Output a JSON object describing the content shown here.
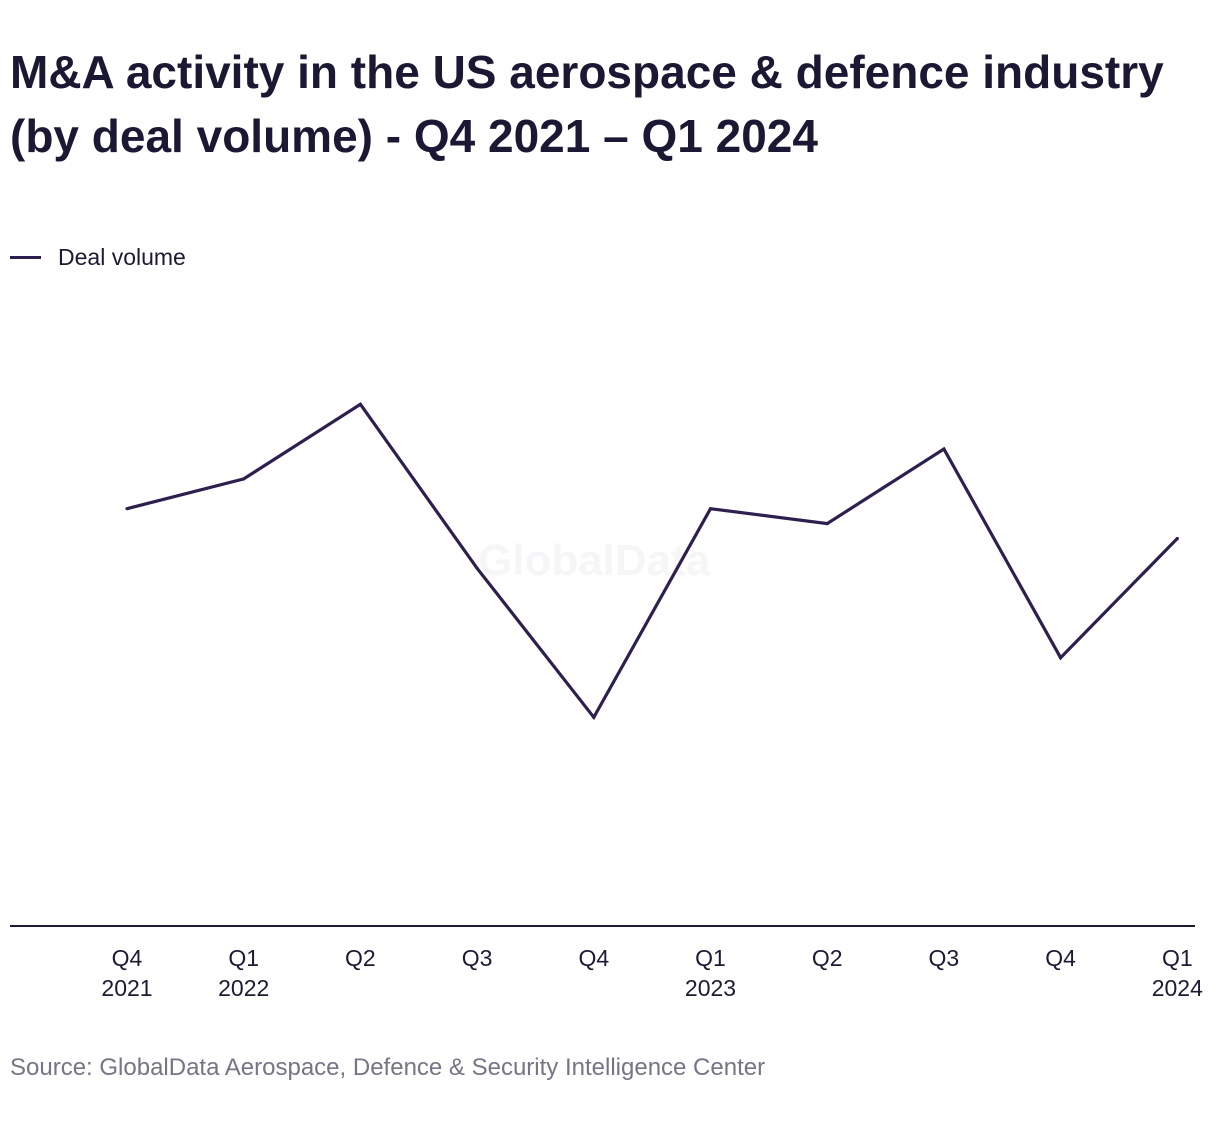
{
  "title": "M&A activity in the US aerospace & defence industry (by deal volume) - Q4 2021 – Q1 2024",
  "legend": {
    "label": "Deal volume"
  },
  "watermark": "GlobalData",
  "source": "Source: GlobalData Aerospace, Defence & Security Intelligence Center",
  "colors": {
    "series": "#2e1f4f",
    "axis": "#1d1a33",
    "text": "#1d1a33",
    "source": "#757585"
  },
  "chart_data": {
    "type": "line",
    "categories": [
      [
        "Q4",
        "2021"
      ],
      [
        "Q1",
        "2022"
      ],
      [
        "Q2"
      ],
      [
        "Q3"
      ],
      [
        "Q4"
      ],
      [
        "Q1",
        "2023"
      ],
      [
        "Q2"
      ],
      [
        "Q3"
      ],
      [
        "Q4"
      ],
      [
        "Q1",
        "2024"
      ]
    ],
    "series": [
      {
        "name": "Deal volume",
        "values": [
          280,
          300,
          350,
          240,
          140,
          280,
          270,
          320,
          180,
          260
        ]
      }
    ],
    "ylim": [
      0,
      420
    ],
    "grid": false,
    "legend_position": "top-left"
  }
}
